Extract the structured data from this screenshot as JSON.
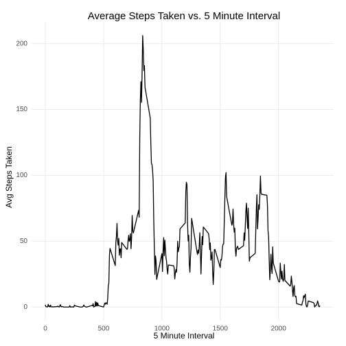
{
  "chart_data": {
    "type": "line",
    "title": "Average Steps Taken vs. 5 Minute Interval",
    "x_label": "5 Minute Interval",
    "y_label": "Avg Steps Taken",
    "color": "#000000",
    "grid": true,
    "xlim": [
      -117.75,
      2472.75
    ],
    "ylim": [
      -10.3,
      216.5
    ],
    "xticks": [
      0,
      500,
      1000,
      1500,
      2000
    ],
    "yticks": [
      0,
      50,
      100,
      150,
      200
    ],
    "x": [
      0,
      5,
      10,
      15,
      20,
      25,
      30,
      35,
      40,
      45,
      50,
      55,
      100,
      105,
      110,
      115,
      120,
      125,
      130,
      135,
      140,
      145,
      150,
      155,
      200,
      205,
      210,
      215,
      220,
      225,
      230,
      235,
      240,
      245,
      250,
      255,
      300,
      305,
      310,
      315,
      320,
      325,
      330,
      335,
      340,
      345,
      350,
      355,
      400,
      405,
      410,
      415,
      420,
      425,
      430,
      435,
      440,
      445,
      450,
      455,
      500,
      505,
      510,
      515,
      520,
      525,
      530,
      535,
      540,
      545,
      550,
      555,
      600,
      605,
      610,
      615,
      620,
      625,
      630,
      635,
      640,
      645,
      650,
      655,
      700,
      705,
      710,
      715,
      720,
      725,
      730,
      735,
      740,
      745,
      750,
      755,
      800,
      805,
      810,
      815,
      820,
      825,
      830,
      835,
      840,
      845,
      850,
      855,
      900,
      905,
      910,
      915,
      920,
      925,
      930,
      935,
      940,
      945,
      950,
      955,
      1000,
      1005,
      1010,
      1015,
      1020,
      1025,
      1030,
      1035,
      1040,
      1045,
      1050,
      1055,
      1100,
      1105,
      1110,
      1115,
      1120,
      1125,
      1130,
      1135,
      1140,
      1145,
      1150,
      1155,
      1200,
      1205,
      1210,
      1215,
      1220,
      1225,
      1230,
      1235,
      1240,
      1245,
      1250,
      1255,
      1300,
      1305,
      1310,
      1315,
      1320,
      1325,
      1330,
      1335,
      1340,
      1345,
      1350,
      1355,
      1400,
      1405,
      1410,
      1415,
      1420,
      1425,
      1430,
      1435,
      1440,
      1445,
      1450,
      1455,
      1500,
      1505,
      1510,
      1515,
      1520,
      1525,
      1530,
      1535,
      1540,
      1545,
      1550,
      1555,
      1600,
      1605,
      1610,
      1615,
      1620,
      1625,
      1630,
      1635,
      1640,
      1645,
      1650,
      1655,
      1700,
      1705,
      1710,
      1715,
      1720,
      1725,
      1730,
      1735,
      1740,
      1745,
      1750,
      1755,
      1800,
      1805,
      1810,
      1815,
      1820,
      1825,
      1830,
      1835,
      1840,
      1845,
      1850,
      1855,
      1900,
      1905,
      1910,
      1915,
      1920,
      1925,
      1930,
      1935,
      1940,
      1945,
      1950,
      1955,
      2000,
      2005,
      2010,
      2015,
      2020,
      2025,
      2030,
      2035,
      2040,
      2045,
      2050,
      2055,
      2100,
      2105,
      2110,
      2115,
      2120,
      2125,
      2130,
      2135,
      2140,
      2145,
      2150,
      2155,
      2200,
      2205,
      2210,
      2215,
      2220,
      2225,
      2230,
      2235,
      2240,
      2245,
      2250,
      2255,
      2300,
      2305,
      2310,
      2315,
      2320,
      2325,
      2330,
      2335,
      2340,
      2345,
      2350,
      2355
    ],
    "values": [
      1.7,
      0.3,
      0.1,
      0.2,
      0.1,
      2.1,
      0.5,
      0.9,
      0,
      1.5,
      0.3,
      0.1,
      0.3,
      0.7,
      0.2,
      0.3,
      0,
      1.1,
      1.8,
      0.2,
      0.2,
      0.4,
      0.3,
      0,
      0,
      0,
      1.1,
      0,
      0,
      0.1,
      0,
      0.2,
      0,
      0,
      1.5,
      0.9,
      0,
      0,
      0,
      0,
      0.2,
      0.6,
      1.6,
      0.6,
      0.5,
      0.1,
      0,
      0,
      1.2,
      0.9,
      2.6,
      0,
      0.3,
      0.4,
      4.1,
      0.7,
      3.5,
      0.8,
      3.1,
      1.1,
      0,
      1.6,
      3,
      2.2,
      3.3,
      3,
      2.1,
      6.1,
      16,
      18.3,
      39.5,
      44.5,
      31.5,
      49.3,
      53.8,
      63.5,
      50,
      47.1,
      52.2,
      39.3,
      44,
      44.2,
      37.4,
      49,
      43.8,
      44.4,
      50.5,
      54.5,
      49.9,
      50.9,
      55.7,
      44.3,
      52.3,
      69.5,
      57.8,
      56.2,
      73.4,
      68.2,
      129.4,
      157.5,
      171.2,
      155.4,
      177.3,
      206.2,
      195.9,
      179.6,
      183.4,
      167,
      143.5,
      124,
      109.1,
      108.1,
      103.7,
      95.97,
      66.2,
      45.2,
      24.8,
      38.8,
      35,
      21,
      40.6,
      26.98,
      42.4,
      52.7,
      38.9,
      50.8,
      44.3,
      37.4,
      34.7,
      28.3,
      25.1,
      31.9,
      31.4,
      29.7,
      21.3,
      25.5,
      28.4,
      26.5,
      33.4,
      50,
      42,
      44.6,
      46,
      59.3,
      63.9,
      87.7,
      94.8,
      92.8,
      63.4,
      50.2,
      54.5,
      32.4,
      26.5,
      37.7,
      45.1,
      67.3,
      42.3,
      39.9,
      43.3,
      40.98,
      46.2,
      56.4,
      42.8,
      25.1,
      39.97,
      53.5,
      47.3,
      60.8,
      55.8,
      51.96,
      43.6,
      48.7,
      35.5,
      37.5,
      41.8,
      27.5,
      17.1,
      26.1,
      43.6,
      43.8,
      30,
      36.1,
      35.5,
      38.8,
      45.96,
      47.8,
      48.1,
      65.3,
      82.9,
      98.7,
      102.1,
      83.96,
      62.1,
      64.1,
      74.5,
      63.2,
      56.9,
      59.8,
      43.9,
      38.6,
      44.7,
      45.5,
      46.2,
      43.7,
      46.6,
      56.3,
      50.7,
      61.2,
      72.7,
      78.9,
      68.9,
      59.7,
      75.1,
      56.5,
      34.8,
      37.5,
      40.7,
      58,
      74.7,
      85.3,
      59.3,
      67.8,
      77.7,
      74.2,
      85.3,
      99.5,
      86.6,
      85.6,
      84.9,
      77.8,
      58,
      53.4,
      36.3,
      20.7,
      27.4,
      40,
      30.2,
      25.5,
      45.7,
      33.5,
      19.6,
      19,
      19.3,
      33.3,
      26.8,
      21.2,
      27.3,
      21.3,
      19.5,
      21.3,
      32.3,
      20.2,
      15.9,
      17.2,
      23.5,
      19.2,
      12.5,
      8,
      14.7,
      16.3,
      8.7,
      7.8,
      8.1,
      2.6,
      1.5,
      3.7,
      4.8,
      8.5,
      7.1,
      8.7,
      9.8,
      2.2,
      0.3,
      0.1,
      1.6,
      4.6,
      3.3,
      2.8,
      0,
      0.8,
      1,
      1.6,
      2.6,
      4.7,
      3.3,
      0.6,
      0.2,
      1.1
    ]
  }
}
